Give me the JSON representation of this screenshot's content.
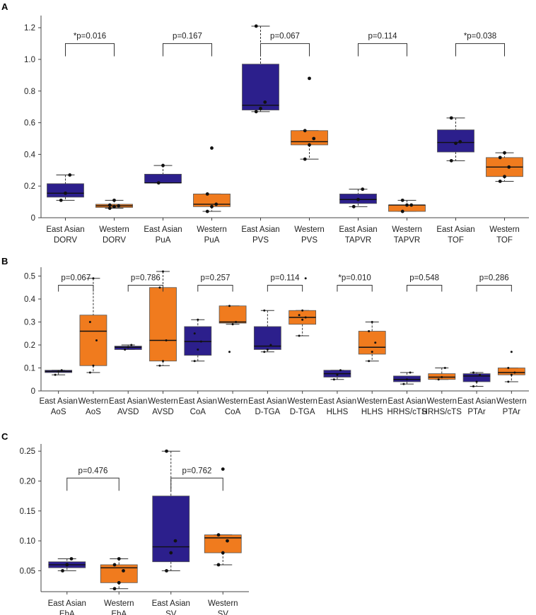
{
  "colors": {
    "east_asian": "#2c1f8c",
    "western": "#f07b1e",
    "line": "#333333"
  },
  "chart_data": [
    {
      "panel": "A",
      "type": "boxplot",
      "ylim": [
        0,
        1.25
      ],
      "yticks": [
        "0",
        "0.2",
        "0.4",
        "0.6",
        "0.8",
        "1.0",
        "1.2"
      ],
      "ytick_values": [
        0,
        0.2,
        0.4,
        0.6,
        0.8,
        1.0,
        1.2
      ],
      "categories": [
        {
          "label": [
            "East Asian",
            "DORV"
          ],
          "group": "east_asian",
          "q1": 0.13,
          "median": 0.155,
          "q3": 0.215,
          "whislo": 0.11,
          "whishi": 0.27,
          "points": [
            0.11,
            0.155,
            0.27
          ]
        },
        {
          "label": [
            "Western",
            "DORV"
          ],
          "group": "western",
          "q1": 0.065,
          "median": 0.075,
          "q3": 0.085,
          "whislo": 0.06,
          "whishi": 0.11,
          "points": [
            0.06,
            0.07,
            0.075,
            0.08,
            0.11
          ]
        },
        {
          "label": [
            "East Asian",
            "PuA"
          ],
          "group": "east_asian",
          "q1": 0.22,
          "median": 0.22,
          "q3": 0.275,
          "whislo": 0.22,
          "whishi": 0.33,
          "points": [
            0.22,
            0.33
          ]
        },
        {
          "label": [
            "Western",
            "PuA"
          ],
          "group": "western",
          "q1": 0.07,
          "median": 0.085,
          "q3": 0.15,
          "whislo": 0.04,
          "whishi": 0.15,
          "points": [
            0.04,
            0.07,
            0.085,
            0.15,
            0.44
          ]
        },
        {
          "label": [
            "East Asian",
            "PVS"
          ],
          "group": "east_asian",
          "q1": 0.68,
          "median": 0.71,
          "q3": 0.97,
          "whislo": 0.67,
          "whishi": 1.21,
          "points": [
            0.67,
            0.69,
            0.73,
            1.21
          ]
        },
        {
          "label": [
            "Western",
            "PVS"
          ],
          "group": "western",
          "q1": 0.46,
          "median": 0.48,
          "q3": 0.55,
          "whislo": 0.37,
          "whishi": 0.55,
          "points": [
            0.37,
            0.46,
            0.5,
            0.55,
            0.88
          ]
        },
        {
          "label": [
            "East Asian",
            "TAPVR"
          ],
          "group": "east_asian",
          "q1": 0.09,
          "median": 0.115,
          "q3": 0.15,
          "whislo": 0.07,
          "whishi": 0.18,
          "points": [
            0.07,
            0.115,
            0.18
          ]
        },
        {
          "label": [
            "Western",
            "TAPVR"
          ],
          "group": "western",
          "q1": 0.04,
          "median": 0.08,
          "q3": 0.08,
          "whislo": 0.04,
          "whishi": 0.11,
          "points": [
            0.04,
            0.08,
            0.08,
            0.11
          ]
        },
        {
          "label": [
            "East Asian",
            "TOF"
          ],
          "group": "east_asian",
          "q1": 0.415,
          "median": 0.475,
          "q3": 0.555,
          "whislo": 0.36,
          "whishi": 0.63,
          "points": [
            0.36,
            0.47,
            0.48,
            0.63
          ]
        },
        {
          "label": [
            "Western",
            "TOF"
          ],
          "group": "western",
          "q1": 0.26,
          "median": 0.32,
          "q3": 0.38,
          "whislo": 0.23,
          "whishi": 0.41,
          "points": [
            0.23,
            0.26,
            0.32,
            0.38,
            0.41
          ]
        }
      ],
      "comparisons": [
        {
          "pair": [
            0,
            1
          ],
          "label": "*p=0.016",
          "y": 1.1
        },
        {
          "pair": [
            2,
            3
          ],
          "label": "p=0.167",
          "y": 1.1
        },
        {
          "pair": [
            4,
            5
          ],
          "label": "p=0.067",
          "y": 1.1
        },
        {
          "pair": [
            6,
            7
          ],
          "label": "p=0.114",
          "y": 1.1
        },
        {
          "pair": [
            8,
            9
          ],
          "label": "*p=0.038",
          "y": 1.1
        }
      ]
    },
    {
      "panel": "B",
      "type": "boxplot",
      "ylim": [
        0,
        0.52
      ],
      "yticks": [
        "0",
        "0.1",
        "0.2",
        "0.3",
        "0.4",
        "0.5"
      ],
      "ytick_values": [
        0,
        0.1,
        0.2,
        0.3,
        0.4,
        0.5
      ],
      "categories": [
        {
          "label": [
            "East Asian",
            "AoS"
          ],
          "group": "east_asian",
          "q1": 0.08,
          "median": 0.085,
          "q3": 0.09,
          "whislo": 0.07,
          "whishi": 0.09,
          "points": [
            0.07,
            0.085,
            0.09
          ]
        },
        {
          "label": [
            "Western",
            "AoS"
          ],
          "group": "western",
          "q1": 0.11,
          "median": 0.26,
          "q3": 0.33,
          "whislo": 0.08,
          "whishi": 0.49,
          "points": [
            0.08,
            0.11,
            0.22,
            0.3,
            0.49
          ]
        },
        {
          "label": [
            "East Asian",
            "AVSD"
          ],
          "group": "east_asian",
          "q1": 0.18,
          "median": 0.19,
          "q3": 0.195,
          "whislo": 0.18,
          "whishi": 0.2,
          "points": [
            0.18,
            0.19,
            0.2
          ]
        },
        {
          "label": [
            "Western",
            "AVSD"
          ],
          "group": "western",
          "q1": 0.13,
          "median": 0.22,
          "q3": 0.45,
          "whislo": 0.11,
          "whishi": 0.52,
          "points": [
            0.11,
            0.13,
            0.22,
            0.45,
            0.52
          ]
        },
        {
          "label": [
            "East Asian",
            "CoA"
          ],
          "group": "east_asian",
          "q1": 0.155,
          "median": 0.215,
          "q3": 0.28,
          "whislo": 0.13,
          "whishi": 0.31,
          "points": [
            0.13,
            0.18,
            0.215,
            0.25,
            0.31
          ]
        },
        {
          "label": [
            "Western",
            "CoA"
          ],
          "group": "western",
          "q1": 0.295,
          "median": 0.3,
          "q3": 0.37,
          "whislo": 0.29,
          "whishi": 0.37,
          "points": [
            0.17,
            0.29,
            0.3,
            0.37
          ]
        },
        {
          "label": [
            "East Asian",
            "D-TGA"
          ],
          "group": "east_asian",
          "q1": 0.18,
          "median": 0.195,
          "q3": 0.28,
          "whislo": 0.17,
          "whishi": 0.35,
          "points": [
            0.17,
            0.18,
            0.2,
            0.35
          ]
        },
        {
          "label": [
            "Western",
            "D-TGA"
          ],
          "group": "western",
          "q1": 0.29,
          "median": 0.32,
          "q3": 0.35,
          "whislo": 0.24,
          "whishi": 0.35,
          "points": [
            0.24,
            0.31,
            0.32,
            0.33,
            0.35,
            0.49
          ]
        },
        {
          "label": [
            "East Asian",
            "HLHS"
          ],
          "group": "east_asian",
          "q1": 0.06,
          "median": 0.075,
          "q3": 0.09,
          "whislo": 0.05,
          "whishi": 0.09,
          "points": [
            0.05,
            0.07,
            0.09
          ]
        },
        {
          "label": [
            "Western",
            "HLHS"
          ],
          "group": "western",
          "q1": 0.16,
          "median": 0.19,
          "q3": 0.26,
          "whislo": 0.13,
          "whishi": 0.3,
          "points": [
            0.13,
            0.17,
            0.21,
            0.26,
            0.3
          ]
        },
        {
          "label": [
            "East Asian",
            "HRHS/cTS"
          ],
          "group": "east_asian",
          "q1": 0.04,
          "median": 0.05,
          "q3": 0.065,
          "whislo": 0.03,
          "whishi": 0.08,
          "points": [
            0.03,
            0.05,
            0.08
          ]
        },
        {
          "label": [
            "Western",
            "HRHS/cTS"
          ],
          "group": "western",
          "q1": 0.05,
          "median": 0.06,
          "q3": 0.075,
          "whislo": 0.05,
          "whishi": 0.1,
          "points": [
            0.05,
            0.06,
            0.1
          ]
        },
        {
          "label": [
            "East Asian",
            "PTAr"
          ],
          "group": "east_asian",
          "q1": 0.04,
          "median": 0.065,
          "q3": 0.075,
          "whislo": 0.02,
          "whishi": 0.08,
          "points": [
            0.02,
            0.04,
            0.07,
            0.08
          ]
        },
        {
          "label": [
            "Western",
            "PTAr"
          ],
          "group": "western",
          "q1": 0.07,
          "median": 0.08,
          "q3": 0.1,
          "whislo": 0.04,
          "whishi": 0.1,
          "points": [
            0.04,
            0.07,
            0.08,
            0.1,
            0.17
          ]
        }
      ],
      "comparisons": [
        {
          "pair": [
            0,
            1
          ],
          "label": "p=0.067",
          "y": 0.46
        },
        {
          "pair": [
            2,
            3
          ],
          "label": "p=0.786",
          "y": 0.46
        },
        {
          "pair": [
            4,
            5
          ],
          "label": "p=0.257",
          "y": 0.46
        },
        {
          "pair": [
            6,
            7
          ],
          "label": "p=0.114",
          "y": 0.46
        },
        {
          "pair": [
            8,
            9
          ],
          "label": "*p=0.010",
          "y": 0.46
        },
        {
          "pair": [
            10,
            11
          ],
          "label": "p=0.548",
          "y": 0.46
        },
        {
          "pair": [
            12,
            13
          ],
          "label": "p=0.286",
          "y": 0.46
        }
      ]
    },
    {
      "panel": "C",
      "type": "boxplot",
      "ylim": [
        0.015,
        0.255
      ],
      "yticks": [
        "0.05",
        "0.10",
        "0.15",
        "0.20",
        "0.25"
      ],
      "ytick_values": [
        0.05,
        0.1,
        0.15,
        0.2,
        0.25
      ],
      "categories": [
        {
          "label": [
            "East Asian",
            "EbA"
          ],
          "group": "east_asian",
          "q1": 0.055,
          "median": 0.06,
          "q3": 0.065,
          "whislo": 0.05,
          "whishi": 0.07,
          "points": [
            0.05,
            0.06,
            0.07
          ]
        },
        {
          "label": [
            "Western",
            "EbA"
          ],
          "group": "western",
          "q1": 0.03,
          "median": 0.055,
          "q3": 0.06,
          "whislo": 0.02,
          "whishi": 0.07,
          "points": [
            0.02,
            0.03,
            0.05,
            0.06,
            0.07
          ]
        },
        {
          "label": [
            "East Asian",
            "SV"
          ],
          "group": "east_asian",
          "q1": 0.065,
          "median": 0.09,
          "q3": 0.175,
          "whislo": 0.05,
          "whishi": 0.25,
          "points": [
            0.05,
            0.08,
            0.1,
            0.25
          ]
        },
        {
          "label": [
            "Western",
            "SV"
          ],
          "group": "western",
          "q1": 0.08,
          "median": 0.105,
          "q3": 0.11,
          "whislo": 0.06,
          "whishi": 0.11,
          "points": [
            0.06,
            0.08,
            0.1,
            0.11,
            0.22
          ]
        }
      ],
      "comparisons": [
        {
          "pair": [
            0,
            1
          ],
          "label": "p=0.476",
          "y": 0.205
        },
        {
          "pair": [
            2,
            3
          ],
          "label": "p=0.762",
          "y": 0.205
        }
      ]
    }
  ]
}
